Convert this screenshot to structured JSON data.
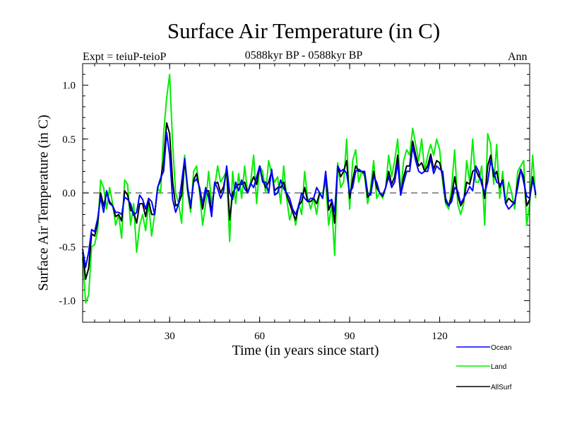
{
  "chart_data": {
    "type": "line",
    "title": "Surface Air Temperature (in C)",
    "subtitle": "0588kyr BP - 0588kyr BP",
    "annotation_left": "Expt = teiuP-teioP",
    "annotation_right": "Ann",
    "xlabel": "Time (in years since start)",
    "ylabel": "Surface Air Temperature (in C)",
    "xlim": [
      1,
      150
    ],
    "ylim": [
      -1.2,
      1.2
    ],
    "xticks": [
      30,
      60,
      90,
      120
    ],
    "xtick_labels": [
      "30",
      "60",
      "90",
      "120"
    ],
    "yticks": [
      -1.0,
      -0.5,
      0.0,
      0.5,
      1.0
    ],
    "ytick_labels": [
      "-1.0",
      "-0.5",
      "0.0",
      "0.5",
      "1.0"
    ],
    "reference_line": 0.0,
    "legend_position": "bottom-right",
    "series": [
      {
        "name": "Ocean",
        "color": "#0000ff",
        "values": [
          -0.52,
          -0.69,
          -0.55,
          -0.34,
          -0.36,
          -0.24,
          -0.04,
          -0.18,
          0.02,
          -0.1,
          -0.12,
          -0.18,
          -0.18,
          -0.2,
          -0.04,
          -0.06,
          -0.1,
          -0.21,
          -0.18,
          -0.02,
          -0.06,
          -0.15,
          -0.05,
          -0.08,
          -0.2,
          0.05,
          0.14,
          0.2,
          0.56,
          0.35,
          -0.06,
          -0.18,
          -0.1,
          0.1,
          0.32,
          0.05,
          -0.12,
          0.1,
          0.13,
          0.05,
          -0.1,
          0.05,
          -0.05,
          -0.22,
          0.1,
          0.04,
          -0.05,
          0.02,
          0.25,
          0.0,
          -0.06,
          0.1,
          0.02,
          0.12,
          0.04,
          0.0,
          0.09,
          0.05,
          0.15,
          0.25,
          0.1,
          0.1,
          0.0,
          0.22,
          -0.02,
          0.0,
          0.12,
          0.04,
          0.0,
          -0.05,
          -0.15,
          -0.2,
          -0.12,
          0.0,
          -0.05,
          -0.08,
          -0.05,
          -0.05,
          0.05,
          0.0,
          -0.05,
          0.2,
          -0.08,
          -0.06,
          -0.18,
          0.25,
          0.2,
          0.22,
          0.18,
          0.0,
          0.05,
          0.2,
          0.22,
          0.2,
          0.2,
          0.0,
          -0.02,
          0.15,
          0.1,
          0.0,
          -0.02,
          0.05,
          0.15,
          0.05,
          0.1,
          0.28,
          -0.02,
          0.1,
          0.2,
          0.2,
          0.43,
          0.3,
          0.2,
          0.18,
          0.2,
          0.2,
          0.32,
          0.18,
          0.25,
          0.22,
          0.2,
          -0.05,
          -0.12,
          -0.08,
          0.05,
          0.02,
          -0.1,
          -0.05,
          0.0,
          0.06,
          0.02,
          0.25,
          0.2,
          0.08,
          0.0,
          0.1,
          0.3,
          0.2,
          0.1,
          0.08,
          0.1,
          -0.1,
          -0.15,
          -0.12,
          -0.08,
          0.05,
          0.22,
          0.1,
          -0.03,
          -0.05,
          0.12,
          0.0
        ]
      },
      {
        "name": "Land",
        "color": "#00ee00",
        "values": [
          -0.6,
          -1.02,
          -0.95,
          -0.5,
          -0.48,
          -0.35,
          0.12,
          0.05,
          -0.15,
          0.05,
          -0.1,
          -0.3,
          -0.2,
          -0.42,
          0.12,
          0.08,
          -0.3,
          -0.1,
          -0.55,
          -0.3,
          -0.2,
          -0.35,
          -0.1,
          -0.4,
          -0.2,
          0.05,
          0.0,
          0.55,
          0.88,
          1.1,
          0.45,
          0.0,
          -0.1,
          -0.28,
          0.35,
          0.0,
          -0.18,
          0.2,
          0.25,
          0.0,
          -0.3,
          -0.1,
          0.2,
          -0.1,
          0.05,
          0.25,
          0.1,
          0.15,
          0.2,
          -0.45,
          0.2,
          -0.1,
          0.18,
          -0.05,
          0.25,
          0.0,
          0.1,
          0.35,
          -0.1,
          0.25,
          0.2,
          0.0,
          0.3,
          0.18,
          0.1,
          0.15,
          -0.1,
          0.25,
          -0.05,
          -0.25,
          -0.15,
          -0.3,
          -0.1,
          -0.2,
          0.2,
          -0.05,
          -0.15,
          -0.05,
          -0.2,
          0.0,
          0.0,
          0.1,
          -0.3,
          -0.1,
          -0.58,
          0.28,
          0.05,
          0.1,
          0.5,
          -0.15,
          0.3,
          0.4,
          0.1,
          0.2,
          0.15,
          -0.1,
          0.05,
          0.3,
          -0.05,
          0.0,
          -0.05,
          0.05,
          0.35,
          0.15,
          0.3,
          0.5,
          0.0,
          0.3,
          0.4,
          0.35,
          0.6,
          0.45,
          0.3,
          0.5,
          0.2,
          0.35,
          0.45,
          0.35,
          0.5,
          0.4,
          0.1,
          -0.1,
          -0.15,
          0.05,
          0.4,
          -0.1,
          -0.2,
          -0.1,
          0.3,
          0.1,
          0.5,
          0.1,
          0.1,
          0.25,
          -0.3,
          0.55,
          0.45,
          0.08,
          0.45,
          -0.05,
          0.2,
          -0.1,
          0.1,
          0.0,
          -0.15,
          0.2,
          0.25,
          0.3,
          -0.3,
          -0.1,
          0.35,
          -0.05
        ]
      },
      {
        "name": "AllSurf",
        "color": "#000000",
        "values": [
          -0.55,
          -0.8,
          -0.7,
          -0.38,
          -0.4,
          -0.28,
          0.0,
          -0.12,
          0.0,
          -0.08,
          -0.12,
          -0.22,
          -0.2,
          -0.26,
          0.02,
          -0.02,
          -0.16,
          -0.18,
          -0.28,
          -0.1,
          -0.1,
          -0.22,
          -0.07,
          -0.2,
          -0.2,
          0.05,
          0.12,
          0.3,
          0.65,
          0.55,
          0.1,
          -0.12,
          -0.1,
          -0.02,
          0.3,
          0.03,
          -0.14,
          0.12,
          0.18,
          0.03,
          -0.15,
          0.02,
          0.02,
          -0.18,
          0.08,
          0.1,
          0.0,
          0.06,
          0.22,
          -0.25,
          0.0,
          0.05,
          0.08,
          0.08,
          0.1,
          0.0,
          0.08,
          0.15,
          0.08,
          0.25,
          0.12,
          0.05,
          0.1,
          0.2,
          0.02,
          0.05,
          0.05,
          0.1,
          -0.02,
          -0.1,
          -0.18,
          -0.25,
          -0.12,
          -0.08,
          0.05,
          -0.08,
          -0.08,
          -0.05,
          -0.1,
          0.0,
          -0.05,
          0.18,
          -0.16,
          -0.08,
          -0.28,
          0.25,
          0.15,
          0.2,
          0.3,
          -0.05,
          0.12,
          0.25,
          0.2,
          0.2,
          0.18,
          -0.04,
          0.0,
          0.2,
          0.05,
          0.0,
          -0.03,
          0.05,
          0.2,
          0.08,
          0.15,
          0.35,
          -0.02,
          0.15,
          0.25,
          0.25,
          0.48,
          0.35,
          0.25,
          0.28,
          0.2,
          0.25,
          0.36,
          0.22,
          0.3,
          0.28,
          0.15,
          -0.08,
          -0.12,
          -0.03,
          0.15,
          -0.02,
          -0.12,
          -0.07,
          0.1,
          0.08,
          0.2,
          0.22,
          0.15,
          0.12,
          -0.05,
          0.25,
          0.35,
          0.15,
          0.2,
          0.05,
          0.12,
          -0.1,
          -0.05,
          -0.08,
          -0.1,
          0.1,
          0.22,
          0.15,
          -0.12,
          -0.06,
          0.15,
          -0.02
        ]
      }
    ]
  }
}
